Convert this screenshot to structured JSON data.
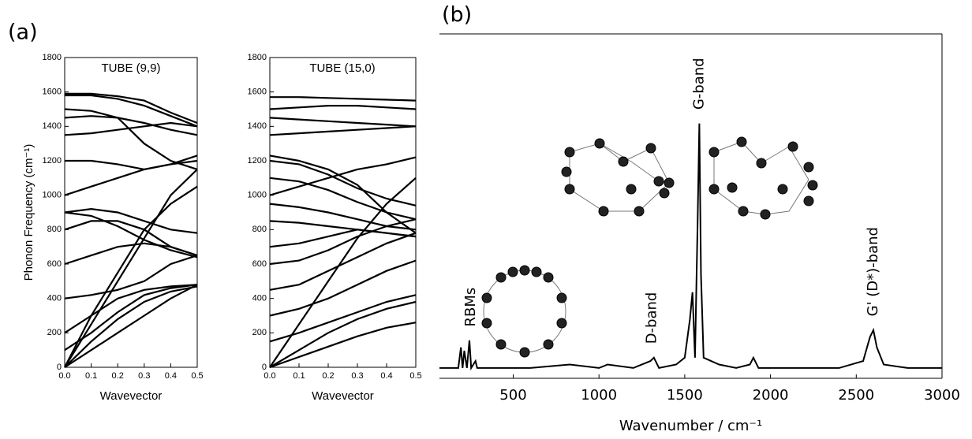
{
  "panel_labels": [
    "(a)",
    "(b)"
  ],
  "chart_data": [
    {
      "type": "line",
      "title": "TUBE (9,9)",
      "x_label": "Wavevector",
      "y_label": "Phonon Frequency (cm⁻¹)",
      "x": [
        0,
        0.1,
        0.2,
        0.3,
        0.4,
        0.5
      ],
      "color": "#000000",
      "xlim": [
        0,
        0.5
      ],
      "ylim": [
        0,
        1800
      ],
      "xticks": [
        {
          "value": 0,
          "label": "0.0"
        },
        0.1,
        0.2,
        0.3,
        0.4,
        0.5
      ],
      "yticks": [
        0,
        200,
        400,
        600,
        800,
        1000,
        1200,
        1400,
        1600,
        1800
      ],
      "series": [
        {
          "values": [
            0,
            150,
            280,
            380,
            440,
            470
          ]
        },
        {
          "values": [
            0,
            100,
            200,
            300,
            400,
            480
          ]
        },
        {
          "values": [
            200,
            300,
            400,
            450,
            470,
            480
          ]
        },
        {
          "values": [
            400,
            420,
            450,
            500,
            600,
            650
          ]
        },
        {
          "values": [
            600,
            650,
            700,
            720,
            700,
            650
          ]
        },
        {
          "values": [
            800,
            850,
            850,
            800,
            700,
            650
          ]
        },
        {
          "values": [
            900,
            920,
            900,
            850,
            800,
            780
          ]
        },
        {
          "values": [
            0,
            300,
            550,
            800,
            950,
            1050
          ]
        },
        {
          "values": [
            0,
            250,
            500,
            750,
            1000,
            1150
          ]
        },
        {
          "values": [
            1000,
            1050,
            1100,
            1150,
            1180,
            1200
          ]
        },
        {
          "values": [
            1200,
            1200,
            1180,
            1150,
            1180,
            1230
          ]
        },
        {
          "values": [
            1350,
            1360,
            1380,
            1400,
            1420,
            1400
          ]
        },
        {
          "values": [
            1450,
            1460,
            1450,
            1420,
            1380,
            1350
          ]
        },
        {
          "values": [
            1580,
            1580,
            1560,
            1520,
            1460,
            1400
          ]
        },
        {
          "values": [
            1590,
            1590,
            1575,
            1550,
            1480,
            1420
          ]
        },
        {
          "values": [
            1500,
            1490,
            1450,
            1300,
            1200,
            1150
          ]
        },
        {
          "values": [
            100,
            200,
            320,
            420,
            460,
            480
          ]
        },
        {
          "values": [
            900,
            880,
            820,
            740,
            680,
            640
          ]
        }
      ]
    },
    {
      "type": "line",
      "title": "TUBE (15,0)",
      "x_label": "Wavevector",
      "x": [
        0,
        0.1,
        0.2,
        0.3,
        0.4,
        0.5
      ],
      "color": "#000000",
      "xlim": [
        0,
        0.5
      ],
      "ylim": [
        0,
        1800
      ],
      "xticks": [
        {
          "value": 0,
          "label": "0.0"
        },
        0.1,
        0.2,
        0.3,
        0.4,
        0.5
      ],
      "yticks": [
        0,
        200,
        400,
        600,
        800,
        1000,
        1200,
        1400,
        1600,
        1800
      ],
      "series": [
        {
          "values": [
            0,
            60,
            120,
            180,
            230,
            260
          ]
        },
        {
          "values": [
            0,
            100,
            200,
            280,
            340,
            380
          ]
        },
        {
          "values": [
            150,
            200,
            260,
            320,
            380,
            420
          ]
        },
        {
          "values": [
            300,
            340,
            400,
            480,
            560,
            620
          ]
        },
        {
          "values": [
            450,
            480,
            560,
            640,
            720,
            780
          ]
        },
        {
          "values": [
            600,
            620,
            680,
            760,
            820,
            860
          ]
        },
        {
          "values": [
            700,
            720,
            760,
            800,
            780,
            760
          ]
        },
        {
          "values": [
            850,
            840,
            820,
            800,
            780,
            760
          ]
        },
        {
          "values": [
            950,
            930,
            900,
            860,
            820,
            800
          ]
        },
        {
          "values": [
            1100,
            1080,
            1030,
            960,
            900,
            860
          ]
        },
        {
          "values": [
            1200,
            1180,
            1120,
            1040,
            980,
            940
          ]
        },
        {
          "values": [
            0,
            250,
            500,
            750,
            950,
            1100
          ]
        },
        {
          "values": [
            1000,
            1050,
            1100,
            1150,
            1180,
            1220
          ]
        },
        {
          "values": [
            1350,
            1360,
            1370,
            1380,
            1390,
            1400
          ]
        },
        {
          "values": [
            1450,
            1440,
            1430,
            1420,
            1410,
            1400
          ]
        },
        {
          "values": [
            1500,
            1510,
            1520,
            1520,
            1510,
            1500
          ]
        },
        {
          "values": [
            1570,
            1570,
            1565,
            1560,
            1555,
            1550
          ]
        },
        {
          "values": [
            1230,
            1200,
            1150,
            1060,
            900,
            780
          ]
        }
      ]
    },
    {
      "type": "line",
      "x_label": "Wavenumber / cm⁻¹",
      "x": [
        70,
        180,
        195,
        205,
        215,
        230,
        245,
        255,
        280,
        290,
        400,
        600,
        830,
        1000,
        1050,
        1200,
        1300,
        1320,
        1350,
        1450,
        1500,
        1530,
        1545,
        1560,
        1575,
        1585,
        1595,
        1610,
        1700,
        1800,
        1880,
        1900,
        1930,
        2200,
        2400,
        2540,
        2580,
        2600,
        2620,
        2660,
        2800,
        3000
      ],
      "color": "#000000",
      "xlim": [
        70,
        3000
      ],
      "ylim": [
        0,
        100
      ],
      "xticks": [
        500,
        1000,
        1500,
        2000,
        2500,
        3000
      ],
      "series": [
        {
          "values": [
            3,
            3,
            9,
            3,
            8,
            3,
            11,
            3,
            5,
            3,
            3,
            3,
            4,
            3,
            4,
            3,
            5,
            6,
            3,
            4,
            6,
            17,
            25,
            6,
            45,
            74,
            30,
            6,
            4,
            3,
            4,
            6,
            3,
            3,
            3,
            5,
            12,
            14,
            9,
            4,
            3,
            3
          ]
        }
      ],
      "annotations": [
        {
          "text": "RBMs",
          "x": 255,
          "y": 15
        },
        {
          "text": "D-band",
          "x": 1310,
          "y": 10
        },
        {
          "text": "G-band",
          "x": 1585,
          "y": 78
        },
        {
          "text": "G' (D*)-band",
          "x": 2600,
          "y": 18
        }
      ]
    }
  ]
}
